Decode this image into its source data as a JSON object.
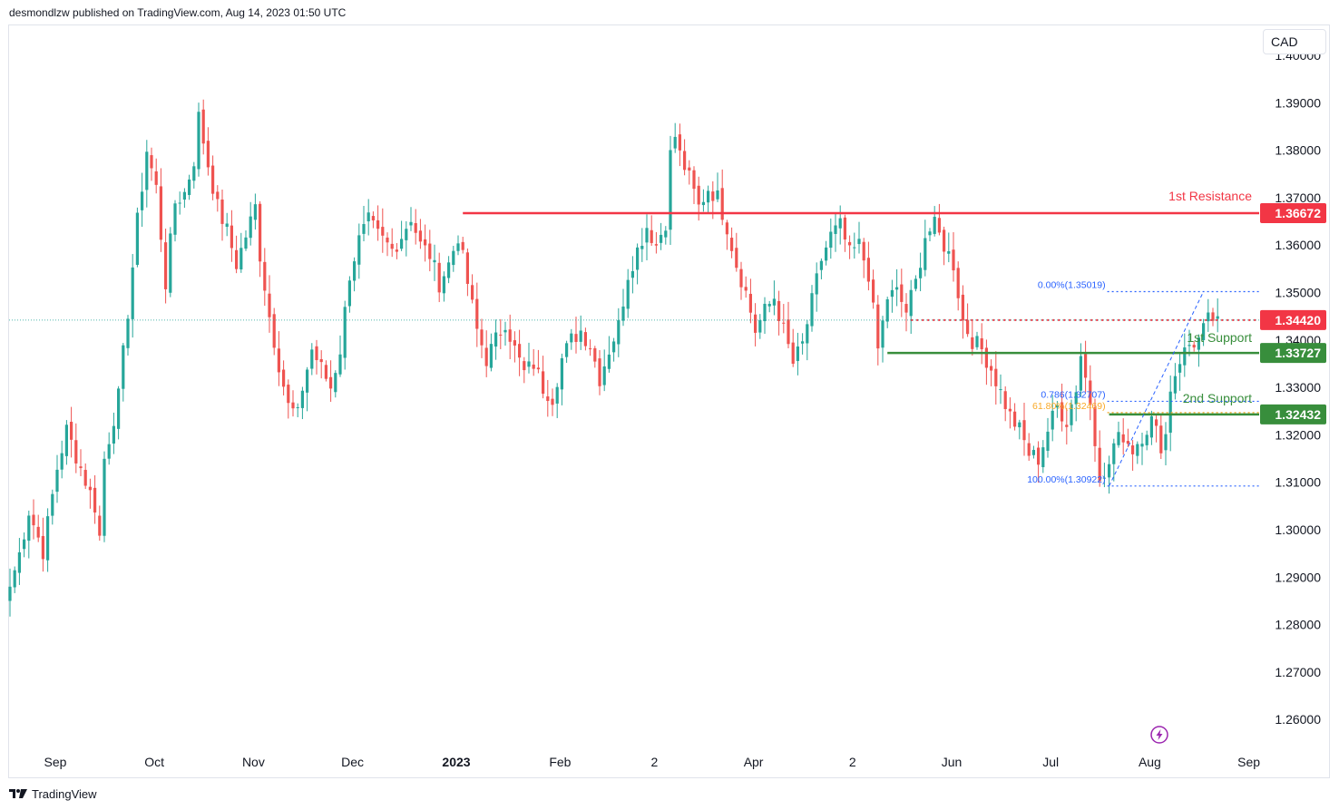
{
  "header": {
    "text": "desmondlzw published on TradingView.com, Aug 14, 2023 01:50 UTC"
  },
  "currency": "CAD",
  "footer": {
    "brand": "TradingView"
  },
  "colors": {
    "up": "#26a69a",
    "down": "#ef5350",
    "resistance": "#f23645",
    "support": "#388e3c",
    "fib": "#2962ff",
    "fib_gold": "#f9a825",
    "price": "#f23645"
  },
  "icons": [
    "tradingview-logo-icon",
    "lightning-bolt-icon"
  ],
  "chart_data": {
    "type": "candlestick",
    "title": "",
    "xlabel": "",
    "ylabel": "",
    "ylim": [
      1.2545,
      1.4065
    ],
    "yticks": [
      "1.40000",
      "1.39000",
      "1.38000",
      "1.37000",
      "1.36000",
      "1.35000",
      "1.34000",
      "1.33000",
      "1.32000",
      "1.31000",
      "1.30000",
      "1.29000",
      "1.28000",
      "1.27000",
      "1.26000"
    ],
    "xticks": [
      {
        "label": "Sep",
        "i": 10,
        "bold": false
      },
      {
        "label": "Oct",
        "i": 31,
        "bold": false
      },
      {
        "label": "Nov",
        "i": 52,
        "bold": false
      },
      {
        "label": "Dec",
        "i": 73,
        "bold": false
      },
      {
        "label": "2023",
        "i": 95,
        "bold": true
      },
      {
        "label": "Feb",
        "i": 117,
        "bold": false
      },
      {
        "label": "2",
        "i": 137,
        "bold": false
      },
      {
        "label": "Apr",
        "i": 158,
        "bold": false
      },
      {
        "label": "2",
        "i": 179,
        "bold": false
      },
      {
        "label": "Jun",
        "i": 200,
        "bold": false
      },
      {
        "label": "Jul",
        "i": 221,
        "bold": false
      },
      {
        "label": "Aug",
        "i": 242,
        "bold": false
      },
      {
        "label": "Sep",
        "i": 263,
        "bold": false
      }
    ],
    "anchors": [
      [
        0,
        1.288
      ],
      [
        2,
        1.295
      ],
      [
        4,
        1.304
      ],
      [
        7,
        1.2955
      ],
      [
        10,
        1.313
      ],
      [
        12,
        1.321
      ],
      [
        15,
        1.313
      ],
      [
        18,
        1.305
      ],
      [
        19,
        1.2985
      ],
      [
        20,
        1.315
      ],
      [
        23,
        1.328
      ],
      [
        25,
        1.346
      ],
      [
        27,
        1.365
      ],
      [
        29,
        1.38
      ],
      [
        31,
        1.372
      ],
      [
        32,
        1.362
      ],
      [
        33,
        1.352
      ],
      [
        35,
        1.369
      ],
      [
        37,
        1.371
      ],
      [
        39,
        1.378
      ],
      [
        40,
        1.387
      ],
      [
        42,
        1.377
      ],
      [
        44,
        1.368
      ],
      [
        46,
        1.363
      ],
      [
        48,
        1.356
      ],
      [
        50,
        1.362
      ],
      [
        52,
        1.368
      ],
      [
        53,
        1.358
      ],
      [
        55,
        1.345
      ],
      [
        57,
        1.335
      ],
      [
        59,
        1.326
      ],
      [
        61,
        1.324
      ],
      [
        62,
        1.33
      ],
      [
        64,
        1.338
      ],
      [
        66,
        1.334
      ],
      [
        68,
        1.33
      ],
      [
        70,
        1.338
      ],
      [
        72,
        1.354
      ],
      [
        74,
        1.361
      ],
      [
        76,
        1.365
      ],
      [
        78,
        1.362
      ],
      [
        81,
        1.359
      ],
      [
        83,
        1.362
      ],
      [
        85,
        1.366
      ],
      [
        87,
        1.36
      ],
      [
        89,
        1.358
      ],
      [
        91,
        1.352
      ],
      [
        93,
        1.356
      ],
      [
        95,
        1.362
      ],
      [
        97,
        1.352
      ],
      [
        99,
        1.342
      ],
      [
        101,
        1.336
      ],
      [
        103,
        1.34
      ],
      [
        105,
        1.344
      ],
      [
        107,
        1.338
      ],
      [
        109,
        1.333
      ],
      [
        111,
        1.335
      ],
      [
        113,
        1.33
      ],
      [
        115,
        1.328
      ],
      [
        117,
        1.336
      ],
      [
        119,
        1.34
      ],
      [
        121,
        1.342
      ],
      [
        123,
        1.339
      ],
      [
        125,
        1.332
      ],
      [
        127,
        1.338
      ],
      [
        129,
        1.343
      ],
      [
        131,
        1.354
      ],
      [
        133,
        1.359
      ],
      [
        135,
        1.364
      ],
      [
        137,
        1.36
      ],
      [
        139,
        1.365
      ],
      [
        140,
        1.379
      ],
      [
        141,
        1.383
      ],
      [
        142,
        1.379
      ],
      [
        144,
        1.374
      ],
      [
        146,
        1.368
      ],
      [
        148,
        1.372
      ],
      [
        150,
        1.37
      ],
      [
        152,
        1.364
      ],
      [
        154,
        1.356
      ],
      [
        156,
        1.35
      ],
      [
        158,
        1.342
      ],
      [
        160,
        1.346
      ],
      [
        162,
        1.349
      ],
      [
        164,
        1.342
      ],
      [
        166,
        1.335
      ],
      [
        168,
        1.339
      ],
      [
        170,
        1.348
      ],
      [
        172,
        1.357
      ],
      [
        174,
        1.362
      ],
      [
        176,
        1.364
      ],
      [
        178,
        1.358
      ],
      [
        180,
        1.36
      ],
      [
        182,
        1.354
      ],
      [
        184,
        1.338
      ],
      [
        186,
        1.349
      ],
      [
        188,
        1.35
      ],
      [
        190,
        1.346
      ],
      [
        192,
        1.352
      ],
      [
        194,
        1.362
      ],
      [
        196,
        1.364
      ],
      [
        198,
        1.36
      ],
      [
        200,
        1.356
      ],
      [
        202,
        1.344
      ],
      [
        204,
        1.34
      ],
      [
        206,
        1.338
      ],
      [
        208,
        1.334
      ],
      [
        210,
        1.329
      ],
      [
        212,
        1.324
      ],
      [
        214,
        1.321
      ],
      [
        216,
        1.316
      ],
      [
        218,
        1.315
      ],
      [
        220,
        1.321
      ],
      [
        222,
        1.326
      ],
      [
        224,
        1.323
      ],
      [
        226,
        1.33
      ],
      [
        227,
        1.337
      ],
      [
        229,
        1.327
      ],
      [
        231,
        1.312
      ],
      [
        232,
        1.31
      ],
      [
        234,
        1.318
      ],
      [
        236,
        1.32
      ],
      [
        238,
        1.317
      ],
      [
        240,
        1.32
      ],
      [
        242,
        1.323
      ],
      [
        244,
        1.318
      ],
      [
        245,
        1.32
      ],
      [
        246,
        1.33
      ],
      [
        248,
        1.336
      ],
      [
        250,
        1.339
      ],
      [
        252,
        1.34
      ],
      [
        254,
        1.344
      ],
      [
        256,
        1.345
      ]
    ],
    "levels": [
      {
        "name": "1st Resistance",
        "price": 1.36672,
        "price_label": "1.36672",
        "start_i": 96,
        "style": "solid"
      },
      {
        "name": "1st Support",
        "price": 1.33727,
        "price_label": "1.33727",
        "start_i": 186,
        "style": "solid"
      },
      {
        "name": "2nd Support",
        "price": 1.32432,
        "price_label": "1.32432",
        "start_i": 233,
        "style": "solid"
      }
    ],
    "last_price": {
      "price": 1.3442,
      "label": "1.34420",
      "start_i": 191
    },
    "fibonacci": [
      {
        "label": "0.00%(1.35019)",
        "price": 1.35019,
        "color": "fib"
      },
      {
        "label": "0.786(1.32707)",
        "price": 1.32707,
        "color": "fib"
      },
      {
        "label": "61.80%(1.32469)",
        "price": 1.32469,
        "color": "fib_gold"
      },
      {
        "label": "100.00%(1.30922)",
        "price": 1.30922,
        "color": "fib"
      }
    ],
    "fib_range": {
      "start_i": 233,
      "end_i": 266
    },
    "grid": false,
    "legend": "none"
  }
}
